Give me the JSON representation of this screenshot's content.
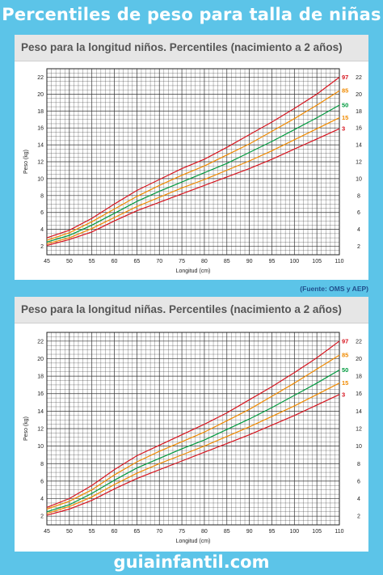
{
  "page_title": "Percentiles de peso para talla de niñas",
  "source_note": "(Fuente: OMS y AEP)",
  "brand": "guiainfantil.com",
  "colors": {
    "background": "#5cc4e8",
    "grid": "#333333",
    "p97": "#d7151f",
    "p85": "#f08a00",
    "p50": "#009a3e",
    "p15": "#f08a00",
    "p3": "#d7151f"
  },
  "chart_data": [
    {
      "type": "line",
      "title": "Peso para la longitud niños. Percentiles (nacimiento a 2 años)",
      "xlabel": "Longitud (cm)",
      "ylabel": "Peso (kg)",
      "xlim": [
        45,
        110
      ],
      "ylim": [
        1,
        23
      ],
      "x_ticks": [
        45,
        50,
        55,
        60,
        65,
        70,
        75,
        80,
        85,
        90,
        95,
        100,
        105,
        110
      ],
      "y_ticks": [
        2,
        4,
        6,
        8,
        10,
        12,
        14,
        16,
        18,
        20,
        22
      ],
      "grid": true,
      "x": [
        45,
        50,
        55,
        60,
        65,
        70,
        75,
        80,
        85,
        90,
        95,
        100,
        105,
        110
      ],
      "series": [
        {
          "name": "97",
          "values": [
            3.0,
            3.9,
            5.3,
            7.0,
            8.6,
            9.9,
            11.2,
            12.3,
            13.7,
            15.2,
            16.7,
            18.3,
            20.0,
            22.0
          ]
        },
        {
          "name": "85",
          "values": [
            2.7,
            3.6,
            4.9,
            6.4,
            7.9,
            9.2,
            10.4,
            11.5,
            12.8,
            14.1,
            15.6,
            17.1,
            18.7,
            20.4
          ]
        },
        {
          "name": "50",
          "values": [
            2.5,
            3.3,
            4.5,
            5.9,
            7.3,
            8.5,
            9.6,
            10.7,
            11.8,
            13.1,
            14.4,
            15.8,
            17.2,
            18.7
          ]
        },
        {
          "name": "15",
          "values": [
            2.3,
            3.0,
            4.1,
            5.4,
            6.7,
            7.8,
            8.9,
            9.9,
            11.0,
            12.1,
            13.3,
            14.6,
            15.9,
            17.2
          ]
        },
        {
          "name": "3",
          "values": [
            2.1,
            2.8,
            3.7,
            5.0,
            6.2,
            7.2,
            8.2,
            9.2,
            10.2,
            11.2,
            12.3,
            13.5,
            14.7,
            15.9
          ]
        }
      ]
    },
    {
      "type": "line",
      "title": "Peso para la longitud niñas. Percentiles (nacimiento a 2 años)",
      "xlabel": "Longitud (cm)",
      "ylabel": "Peso (kg)",
      "xlim": [
        45,
        110
      ],
      "ylim": [
        1,
        23
      ],
      "x_ticks": [
        45,
        50,
        55,
        60,
        65,
        70,
        75,
        80,
        85,
        90,
        95,
        100,
        105,
        110
      ],
      "y_ticks": [
        2,
        4,
        6,
        8,
        10,
        12,
        14,
        16,
        18,
        20,
        22
      ],
      "grid": true,
      "x": [
        45,
        50,
        55,
        60,
        65,
        70,
        75,
        80,
        85,
        90,
        95,
        100,
        105,
        110
      ],
      "series": [
        {
          "name": "97",
          "values": [
            3.0,
            4.0,
            5.5,
            7.3,
            8.9,
            10.1,
            11.3,
            12.5,
            13.8,
            15.3,
            16.8,
            18.4,
            20.1,
            22.0
          ]
        },
        {
          "name": "85",
          "values": [
            2.8,
            3.7,
            5.0,
            6.7,
            8.2,
            9.4,
            10.5,
            11.6,
            12.9,
            14.2,
            15.7,
            17.2,
            18.8,
            20.4
          ]
        },
        {
          "name": "50",
          "values": [
            2.5,
            3.3,
            4.6,
            6.1,
            7.5,
            8.6,
            9.7,
            10.7,
            11.9,
            13.1,
            14.4,
            15.8,
            17.2,
            18.7
          ]
        },
        {
          "name": "15",
          "values": [
            2.3,
            3.1,
            4.2,
            5.6,
            6.9,
            8.0,
            9.0,
            10.0,
            11.1,
            12.2,
            13.4,
            14.6,
            15.9,
            17.2
          ]
        },
        {
          "name": "3",
          "values": [
            2.1,
            2.8,
            3.8,
            5.1,
            6.3,
            7.3,
            8.3,
            9.3,
            10.3,
            11.3,
            12.4,
            13.5,
            14.7,
            15.9
          ]
        }
      ]
    }
  ]
}
